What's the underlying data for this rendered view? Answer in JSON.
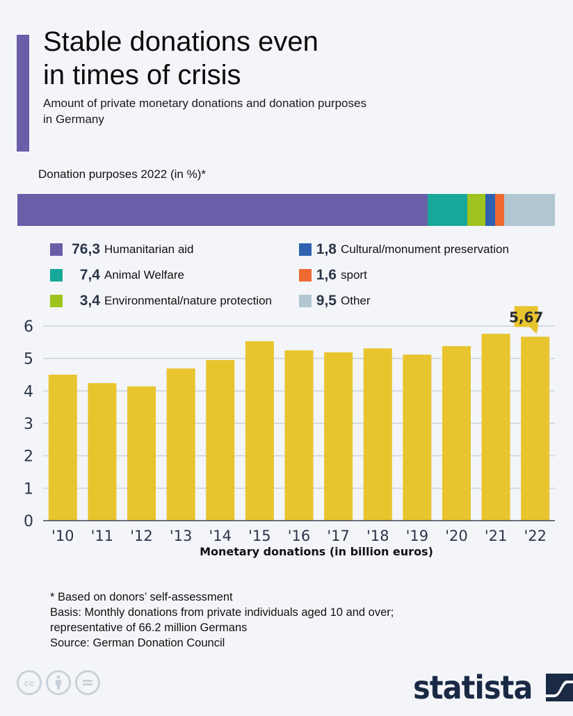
{
  "header": {
    "title_line1": "Stable donations even",
    "title_line2": "in times of crisis",
    "subtitle_line1": "Amount of private monetary donations and donation purposes",
    "subtitle_line2": "in Germany"
  },
  "purposes": {
    "title": "Donation purposes 2022 (in %)*",
    "items": [
      {
        "value": "76,3",
        "label": "Humanitarian aid",
        "pct": 76.3,
        "color": "#6a5ea8"
      },
      {
        "value": "7,4",
        "label": "Animal Welfare",
        "pct": 7.4,
        "color": "#17a89a"
      },
      {
        "value": "3,4",
        "label": "Environmental/nature protection",
        "pct": 3.4,
        "color": "#9fc31f"
      },
      {
        "value": "1,8",
        "label": "Cultural/monument preservation",
        "pct": 1.8,
        "color": "#2e62b0"
      },
      {
        "value": "1,6",
        "label": "sport",
        "pct": 1.6,
        "color": "#ee6a31"
      },
      {
        "value": "9,5",
        "label": "Other",
        "pct": 9.5,
        "color": "#b0c6d1"
      }
    ]
  },
  "chart_data": [
    {
      "type": "bar",
      "orientation": "horizontal-stacked",
      "title": "Donation purposes 2022 (in %)*",
      "categories": [
        "Humanitarian aid",
        "Animal Welfare",
        "Environmental/nature protection",
        "Cultural/monument preservation",
        "sport",
        "Other"
      ],
      "values": [
        76.3,
        7.4,
        3.4,
        1.8,
        1.6,
        9.5
      ],
      "legend": "bottom"
    },
    {
      "type": "bar",
      "title": "",
      "xlabel": "Monetary donations (in billion euros)",
      "ylabel": "",
      "categories": [
        "'10",
        "'11",
        "'12",
        "'13",
        "'14",
        "'15",
        "'16",
        "'17",
        "'18",
        "'19",
        "'20",
        "'21",
        "'22"
      ],
      "values": [
        4.5,
        4.24,
        4.14,
        4.69,
        4.95,
        5.53,
        5.25,
        5.19,
        5.31,
        5.12,
        5.38,
        5.76,
        5.67
      ],
      "ylim": [
        0,
        6
      ],
      "yticks": [
        "0",
        "1",
        "2",
        "3",
        "4",
        "5",
        "6"
      ],
      "grid": true,
      "bar_color": "#e8c42e",
      "annotation": {
        "category": "'22",
        "text": "5,67"
      }
    }
  ],
  "footnote": {
    "lines": [
      "* Based on donors’ self-assessment",
      "Basis: Monthly donations from private individuals aged 10 and over;",
      "representative of 66.2 million Germans",
      "Source: German Donation Council"
    ]
  },
  "footer": {
    "license_icons": [
      "cc-icon",
      "attribution-icon",
      "no-derivatives-icon"
    ],
    "cc_text": "cc",
    "logo_text": "statista"
  }
}
